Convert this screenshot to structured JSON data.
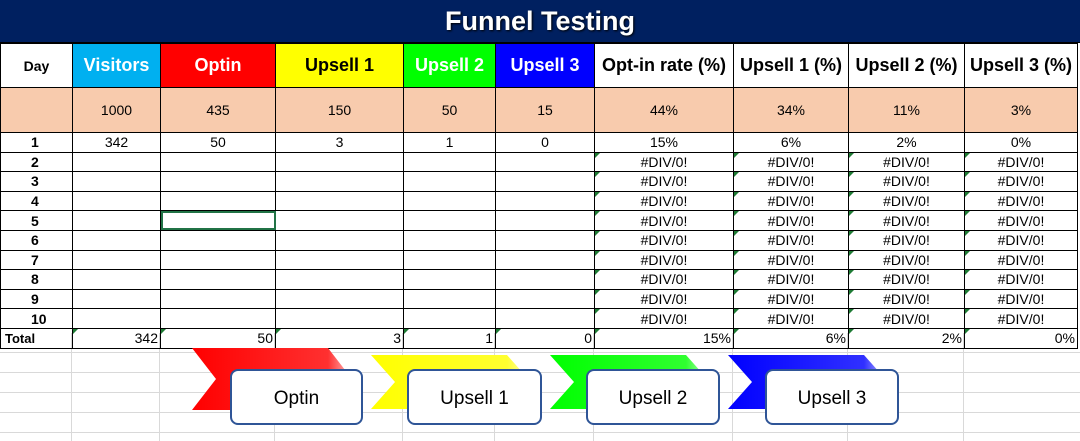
{
  "title": "Funnel Testing",
  "headers": [
    "Day",
    "Visitors",
    "Optin",
    "Upsell 1",
    "Upsell 2",
    "Upsell 3",
    "Opt-in rate (%)",
    "Upsell 1 (%)",
    "Upsell 2 (%)",
    "Upsell 3 (%)"
  ],
  "column_colors": {
    "visitors": "#00b0f0",
    "optin": "#ff0000",
    "upsell1": "#ffff00",
    "upsell2": "#00ff00",
    "upsell3": "#0000ff",
    "title_bg": "#002060",
    "totals_bg": "#f8cbad"
  },
  "targets": [
    "1000",
    "435",
    "150",
    "50",
    "15",
    "44%",
    "34%",
    "11%",
    "3%"
  ],
  "days": [
    {
      "day": "1",
      "visitors": "342",
      "optin": "50",
      "upsell1": "3",
      "upsell2": "1",
      "upsell3": "0",
      "r1": "15%",
      "r2": "6%",
      "r3": "2%",
      "r4": "0%"
    },
    {
      "day": "2",
      "visitors": "",
      "optin": "",
      "upsell1": "",
      "upsell2": "",
      "upsell3": "",
      "r1": "#DIV/0!",
      "r2": "#DIV/0!",
      "r3": "#DIV/0!",
      "r4": "#DIV/0!"
    },
    {
      "day": "3",
      "visitors": "",
      "optin": "",
      "upsell1": "",
      "upsell2": "",
      "upsell3": "",
      "r1": "#DIV/0!",
      "r2": "#DIV/0!",
      "r3": "#DIV/0!",
      "r4": "#DIV/0!"
    },
    {
      "day": "4",
      "visitors": "",
      "optin": "",
      "upsell1": "",
      "upsell2": "",
      "upsell3": "",
      "r1": "#DIV/0!",
      "r2": "#DIV/0!",
      "r3": "#DIV/0!",
      "r4": "#DIV/0!"
    },
    {
      "day": "5",
      "visitors": "",
      "optin": "",
      "upsell1": "",
      "upsell2": "",
      "upsell3": "",
      "r1": "#DIV/0!",
      "r2": "#DIV/0!",
      "r3": "#DIV/0!",
      "r4": "#DIV/0!"
    },
    {
      "day": "6",
      "visitors": "",
      "optin": "",
      "upsell1": "",
      "upsell2": "",
      "upsell3": "",
      "r1": "#DIV/0!",
      "r2": "#DIV/0!",
      "r3": "#DIV/0!",
      "r4": "#DIV/0!"
    },
    {
      "day": "7",
      "visitors": "",
      "optin": "",
      "upsell1": "",
      "upsell2": "",
      "upsell3": "",
      "r1": "#DIV/0!",
      "r2": "#DIV/0!",
      "r3": "#DIV/0!",
      "r4": "#DIV/0!"
    },
    {
      "day": "8",
      "visitors": "",
      "optin": "",
      "upsell1": "",
      "upsell2": "",
      "upsell3": "",
      "r1": "#DIV/0!",
      "r2": "#DIV/0!",
      "r3": "#DIV/0!",
      "r4": "#DIV/0!"
    },
    {
      "day": "9",
      "visitors": "",
      "optin": "",
      "upsell1": "",
      "upsell2": "",
      "upsell3": "",
      "r1": "#DIV/0!",
      "r2": "#DIV/0!",
      "r3": "#DIV/0!",
      "r4": "#DIV/0!"
    },
    {
      "day": "10",
      "visitors": "",
      "optin": "",
      "upsell1": "",
      "upsell2": "",
      "upsell3": "",
      "r1": "#DIV/0!",
      "r2": "#DIV/0!",
      "r3": "#DIV/0!",
      "r4": "#DIV/0!"
    }
  ],
  "total": {
    "label": "Total",
    "values": [
      "342",
      "50",
      "3",
      "1",
      "0",
      "15%",
      "6%",
      "2%",
      "0%"
    ]
  },
  "funnel_steps": [
    {
      "label": "Optin",
      "color": "#ff0000"
    },
    {
      "label": "Upsell 1",
      "color": "#ffff00"
    },
    {
      "label": "Upsell 2",
      "color": "#00ff00"
    },
    {
      "label": "Upsell 3",
      "color": "#0000ff"
    }
  ]
}
